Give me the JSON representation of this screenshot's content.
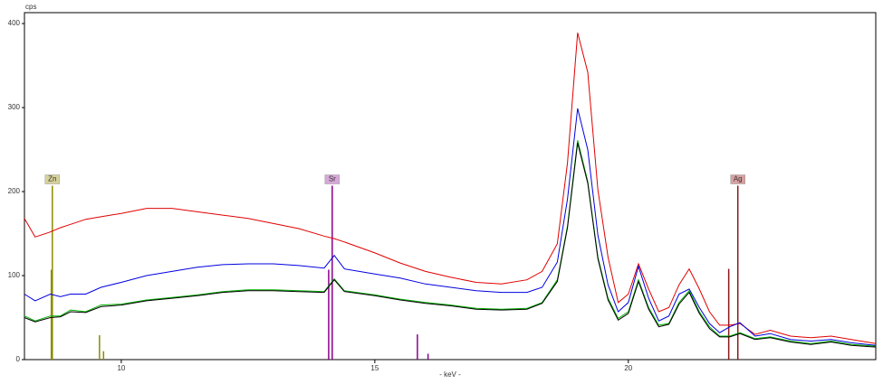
{
  "chart_data": {
    "type": "line",
    "y_label": "cps",
    "x_label": "- keV -",
    "x": [
      8.09,
      8.3,
      8.6,
      8.8,
      9.0,
      9.3,
      9.6,
      10,
      10.5,
      11,
      11.5,
      12,
      12.5,
      13,
      13.5,
      14,
      14.2,
      14.4,
      15,
      15.5,
      16,
      16.5,
      17,
      17.5,
      18,
      18.3,
      18.6,
      18.8,
      19.0,
      19.2,
      19.4,
      19.6,
      19.8,
      20.0,
      20.2,
      20.4,
      20.6,
      20.8,
      21.0,
      21.2,
      21.4,
      21.6,
      21.8,
      22.0,
      22.2,
      22.5,
      22.8,
      23.2,
      23.6,
      24.0,
      24.4,
      24.88
    ],
    "series": [
      {
        "color": "#e00000",
        "values": [
          168,
          146,
          152,
          157,
          161,
          167,
          170,
          174,
          180,
          180,
          176,
          172,
          168,
          162,
          156,
          147,
          144,
          140,
          127,
          115,
          105,
          98,
          92,
          90,
          95,
          105,
          138,
          234,
          389,
          342,
          202,
          122,
          68,
          78,
          114,
          84,
          57,
          62,
          89,
          108,
          84,
          57,
          41,
          41,
          43,
          30,
          35,
          28,
          26,
          28,
          24,
          19
        ]
      },
      {
        "color": "#0000e0",
        "values": [
          78,
          70,
          78,
          75,
          78,
          78,
          86,
          92,
          100,
          105,
          110,
          113,
          114,
          114,
          112,
          109,
          124,
          108,
          102,
          97,
          90,
          86,
          82,
          80,
          80,
          86,
          116,
          191,
          299,
          250,
          148,
          89,
          57,
          68,
          111,
          73,
          46,
          52,
          78,
          84,
          62,
          43,
          32,
          39,
          44,
          28,
          31,
          24,
          22,
          24,
          20,
          17
        ]
      },
      {
        "color": "#00b000",
        "values": [
          52,
          46,
          52,
          52,
          59,
          57,
          65,
          66,
          71,
          74,
          77,
          81,
          83,
          83,
          82,
          81,
          96,
          82,
          77,
          72,
          68,
          65,
          61,
          60,
          61,
          68,
          95,
          159,
          261,
          212,
          122,
          73,
          49,
          57,
          95,
          62,
          41,
          43,
          68,
          82,
          57,
          39,
          28,
          28,
          32,
          25,
          27,
          22,
          19,
          22,
          18,
          16
        ]
      },
      {
        "color": "#000000",
        "values": [
          50,
          45,
          50,
          51,
          57,
          56,
          63,
          65,
          70,
          73,
          76,
          80,
          82,
          82,
          81,
          80,
          95,
          81,
          76,
          71,
          67,
          64,
          60,
          59,
          60,
          67,
          93,
          157,
          258,
          210,
          120,
          71,
          47,
          55,
          93,
          60,
          39,
          42,
          66,
          80,
          55,
          37,
          27,
          27,
          31,
          24,
          26,
          21,
          18,
          21,
          17,
          15
        ]
      }
    ],
    "markers": [
      {
        "label": "Zn",
        "color": "#8b8b00",
        "box": "#d6d29a",
        "lines": [
          {
            "x": 8.64,
            "height": 207
          },
          {
            "x": 8.62,
            "height": 107
          },
          {
            "x": 9.57,
            "height": 29
          },
          {
            "x": 9.65,
            "height": 10
          }
        ]
      },
      {
        "label": "Sr",
        "color": "#8b008b",
        "box": "#d8a8d8",
        "lines": [
          {
            "x": 14.16,
            "height": 207
          },
          {
            "x": 14.09,
            "height": 107
          },
          {
            "x": 15.84,
            "height": 30
          },
          {
            "x": 16.05,
            "height": 7
          }
        ]
      },
      {
        "label": "Ag",
        "color": "#8b1a1a",
        "box": "#d8a0a0",
        "lines": [
          {
            "x": 22.16,
            "height": 207
          },
          {
            "x": 21.98,
            "height": 108
          }
        ]
      }
    ],
    "xlim": [
      8.09,
      24.88
    ],
    "ylim": [
      0,
      413
    ],
    "xticks": [
      10,
      15,
      20
    ],
    "yticks": [
      0,
      100,
      200,
      300,
      400
    ]
  }
}
